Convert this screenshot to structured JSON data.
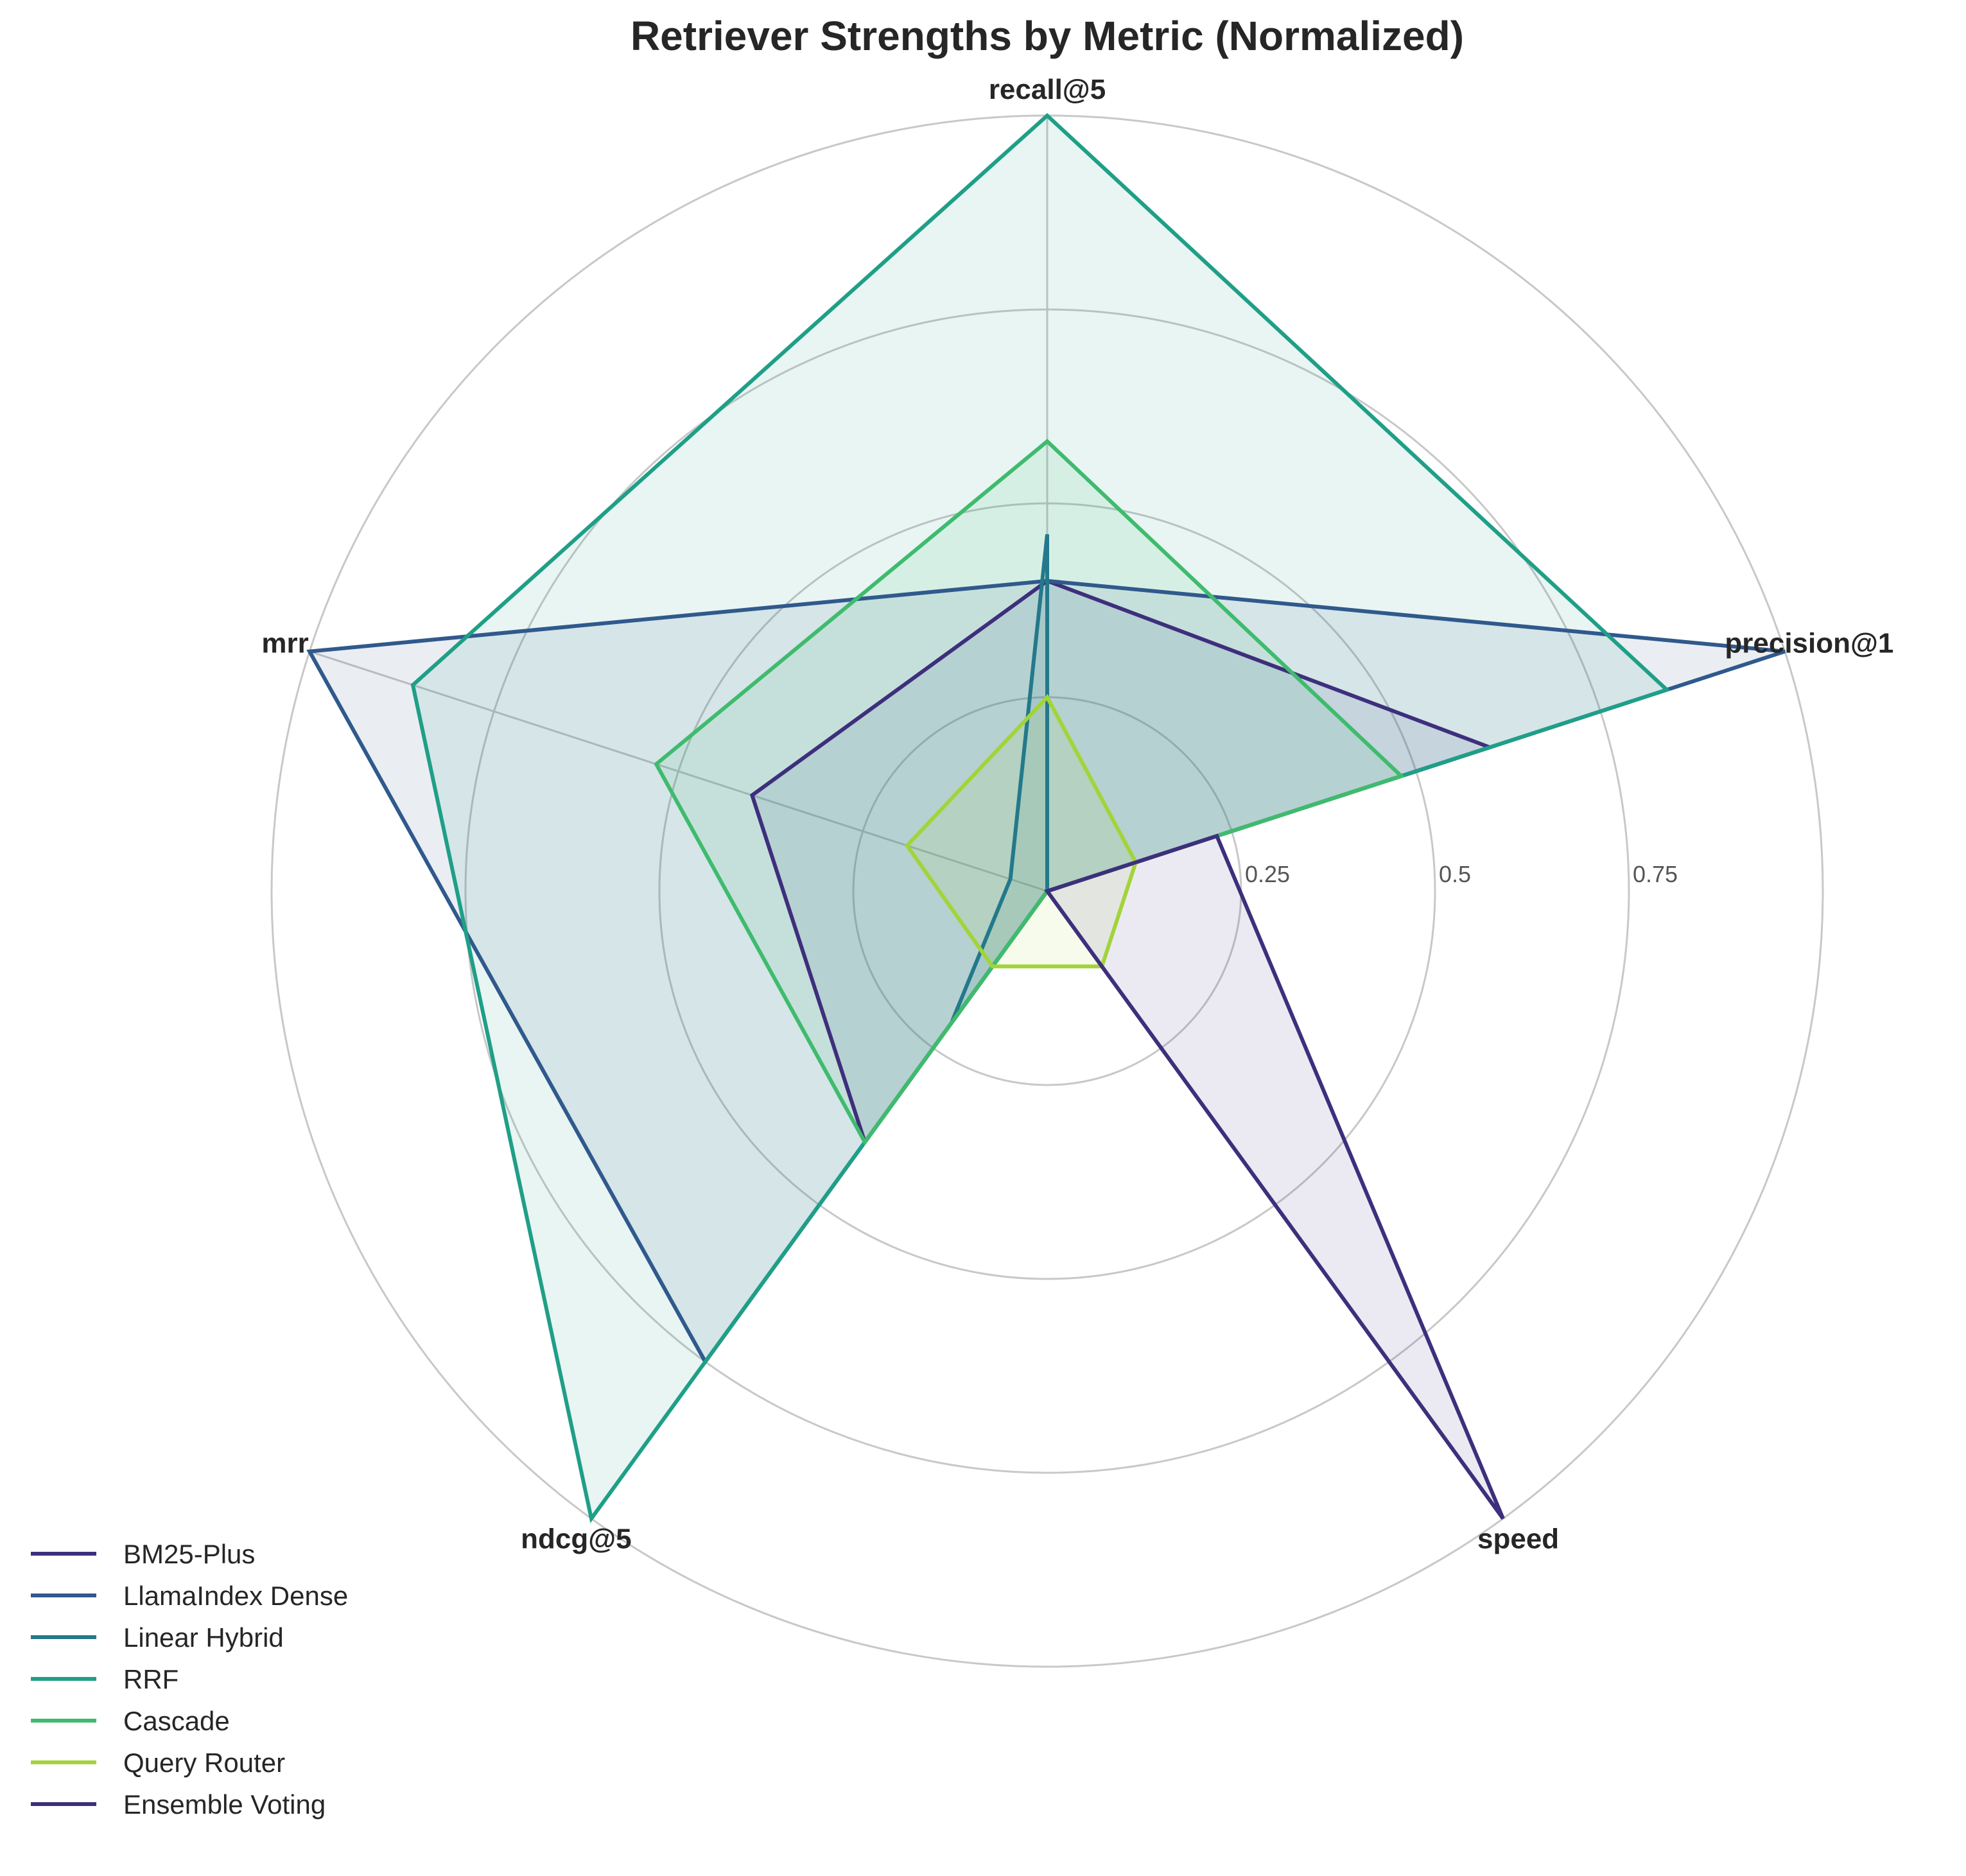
{
  "chart_data": {
    "type": "radar",
    "title": "Retriever Strengths by Metric (Normalized)",
    "axes": [
      "precision@1",
      "recall@5",
      "mrr",
      "ndcg@5",
      "speed"
    ],
    "rlim": [
      0,
      1
    ],
    "rticks": [
      0.25,
      0.5,
      0.75
    ],
    "rtick_labels": [
      "0.25",
      "0.5",
      "0.75"
    ],
    "grid": true,
    "legend_position": "lower-left",
    "series": [
      {
        "name": "BM25-Plus",
        "color": "#3e2f7c",
        "values": [
          0.6,
          0.4,
          0.4,
          0.4,
          0.0
        ]
      },
      {
        "name": "LlamaIndex Dense",
        "color": "#30598c",
        "values": [
          1.0,
          0.4,
          1.0,
          0.75,
          0.0
        ]
      },
      {
        "name": "Linear Hybrid",
        "color": "#23798b",
        "values": [
          0.0,
          0.46,
          0.05,
          0.21,
          0.0
        ]
      },
      {
        "name": "RRF",
        "color": "#1f9f87",
        "values": [
          0.84,
          1.0,
          0.86,
          1.0,
          0.0
        ]
      },
      {
        "name": "Cascade",
        "color": "#3fbb6d",
        "values": [
          0.48,
          0.58,
          0.53,
          0.4,
          0.0
        ]
      },
      {
        "name": "Query Router",
        "color": "#a2d43a",
        "values": [
          0.12,
          0.25,
          0.19,
          0.12,
          0.12
        ]
      },
      {
        "name": "Ensemble Voting",
        "color": "#3e2f7c",
        "values": [
          0.23,
          0.0,
          0.0,
          0.0,
          1.0
        ]
      }
    ]
  }
}
